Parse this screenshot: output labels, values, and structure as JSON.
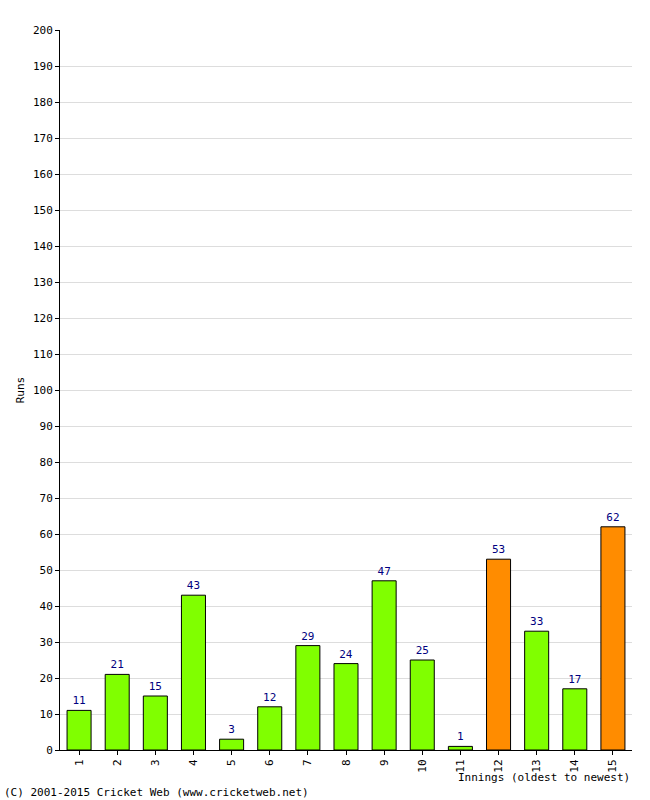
{
  "chart_data": {
    "type": "bar",
    "y_label": "Runs",
    "x_label": "Innings (oldest to newest)",
    "annotations": [
      "(C) 2001-2015 Cricket Web (www.cricketweb.net)"
    ],
    "categories": [
      "1",
      "2",
      "3",
      "4",
      "5",
      "6",
      "7",
      "8",
      "9",
      "10",
      "11",
      "12",
      "13",
      "14",
      "15"
    ],
    "values": [
      11,
      21,
      15,
      43,
      3,
      12,
      29,
      24,
      47,
      25,
      1,
      53,
      33,
      17,
      62
    ],
    "colors": [
      "#80ff00",
      "#80ff00",
      "#80ff00",
      "#80ff00",
      "#80ff00",
      "#80ff00",
      "#80ff00",
      "#80ff00",
      "#80ff00",
      "#80ff00",
      "#80ff00",
      "#ff8c00",
      "#80ff00",
      "#80ff00",
      "#ff8c00"
    ],
    "ylim": [
      0,
      200
    ],
    "yticks": [
      0,
      10,
      20,
      30,
      40,
      50,
      60,
      70,
      80,
      90,
      100,
      110,
      120,
      130,
      140,
      150,
      160,
      170,
      180,
      190,
      200
    ],
    "grid": true,
    "data_labels": true
  }
}
